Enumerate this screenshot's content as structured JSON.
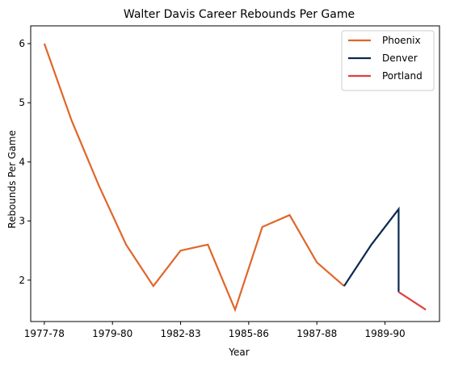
{
  "chart_data": {
    "type": "line",
    "title": "Walter Davis  Career Rebounds Per Game",
    "xlabel": "Year",
    "ylabel": "Rebounds Per Game",
    "x_tick_labels": [
      "1977-78",
      "1979-80",
      "1982-83",
      "1985-86",
      "1987-88",
      "1989-90"
    ],
    "x_tick_positions": [
      0,
      2.5,
      5,
      7.5,
      10,
      12.5
    ],
    "xlim": [
      -0.5,
      14.5
    ],
    "y_ticks": [
      "2",
      "3",
      "4",
      "5",
      "6"
    ],
    "y_tick_values": [
      2,
      3,
      4,
      5,
      6
    ],
    "ylim": [
      1.3,
      6.3
    ],
    "grid": false,
    "legend_position": "top-right",
    "series": [
      {
        "name": "Phoenix",
        "color": "#e0662a",
        "points": [
          [
            0,
            6.0
          ],
          [
            1,
            4.7
          ],
          [
            2,
            3.6
          ],
          [
            3,
            2.6
          ],
          [
            4,
            1.9
          ],
          [
            5,
            2.5
          ],
          [
            6,
            2.6
          ],
          [
            7,
            1.5
          ],
          [
            8,
            2.9
          ],
          [
            9,
            3.1
          ],
          [
            10,
            2.3
          ],
          [
            11,
            1.9
          ]
        ]
      },
      {
        "name": "Denver",
        "color": "#0b2a50",
        "points": [
          [
            11,
            1.9
          ],
          [
            12,
            2.6
          ],
          [
            13,
            3.2
          ],
          [
            13,
            1.8
          ]
        ]
      },
      {
        "name": "Portland",
        "color": "#e04040",
        "points": [
          [
            13,
            1.8
          ],
          [
            14,
            1.5
          ]
        ]
      }
    ]
  }
}
